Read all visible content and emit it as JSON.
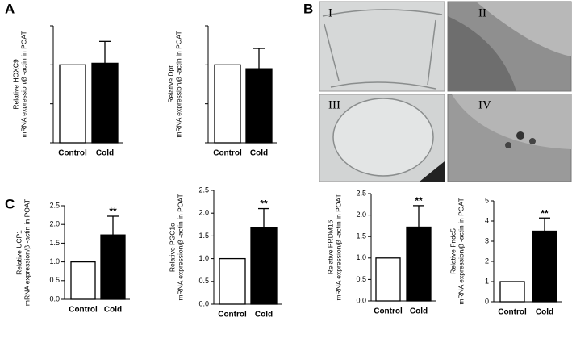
{
  "panel_labels": [
    "A",
    "B",
    "C"
  ],
  "micrographs": [
    "I",
    "II",
    "III",
    "IV"
  ],
  "chart_data": [
    {
      "type": "bar",
      "ylabel": [
        "Relative HOXC9",
        "mRNA expression/β -actin in POAT"
      ],
      "categories": [
        "Control",
        "Cold"
      ],
      "values": [
        1.0,
        1.02
      ],
      "errors": [
        null,
        0.28
      ],
      "colors": [
        "#ffffff",
        "#000000"
      ],
      "ylim": [
        0,
        1.5
      ],
      "yticks": [
        0,
        0.5,
        1,
        1.5
      ],
      "tick_labels": false,
      "annotations": [
        null,
        null
      ]
    },
    {
      "type": "bar",
      "ylabel": [
        "Relative Dpt",
        "mRNA expression/β -actin in POAT"
      ],
      "categories": [
        "Control",
        "Cold"
      ],
      "values": [
        1.0,
        0.95
      ],
      "errors": [
        null,
        0.26
      ],
      "colors": [
        "#ffffff",
        "#000000"
      ],
      "ylim": [
        0,
        1.5
      ],
      "yticks": [
        0,
        0.5,
        1,
        1.5
      ],
      "tick_labels": false,
      "annotations": [
        null,
        null
      ]
    },
    {
      "type": "bar",
      "ylabel": [
        "Relative UCP1",
        "mRNA expression/β -actin in POAT"
      ],
      "categories": [
        "Control",
        "Cold"
      ],
      "values": [
        1.0,
        1.72
      ],
      "errors": [
        null,
        0.5
      ],
      "colors": [
        "#ffffff",
        "#000000"
      ],
      "ylim": [
        0,
        2.5
      ],
      "yticks": [
        {
          "value": 0,
          "label": "0.0"
        },
        0.5,
        {
          "value": 1,
          "label": "1.0"
        },
        1.5,
        {
          "value": 2,
          "label": "2.0"
        },
        2.5
      ],
      "tick_labels": true,
      "annotations": [
        null,
        "**"
      ]
    },
    {
      "type": "bar",
      "ylabel": [
        "Relative PGC1α",
        "mRNA expression/β -actin in POAT"
      ],
      "categories": [
        "Control",
        "Cold"
      ],
      "values": [
        1.0,
        1.68
      ],
      "errors": [
        null,
        0.42
      ],
      "colors": [
        "#ffffff",
        "#000000"
      ],
      "ylim": [
        0,
        2.5
      ],
      "yticks": [
        {
          "value": 0,
          "label": "0.0"
        },
        0.5,
        {
          "value": 1,
          "label": "1.0"
        },
        1.5,
        {
          "value": 2,
          "label": "2.0"
        },
        2.5
      ],
      "tick_labels": true,
      "annotations": [
        null,
        "**"
      ]
    },
    {
      "type": "bar",
      "ylabel": [
        "Relative PRDM16",
        "mRNA expression/β -actin in POAT"
      ],
      "categories": [
        "Control",
        "Cold"
      ],
      "values": [
        1.0,
        1.72
      ],
      "errors": [
        null,
        0.5
      ],
      "colors": [
        "#ffffff",
        "#000000"
      ],
      "ylim": [
        0,
        2.5
      ],
      "yticks": [
        {
          "value": 0,
          "label": "0.0"
        },
        0.5,
        {
          "value": 1,
          "label": "1.0"
        },
        1.5,
        {
          "value": 2,
          "label": "2.0"
        },
        2.5
      ],
      "tick_labels": true,
      "annotations": [
        null,
        "**"
      ]
    },
    {
      "type": "bar",
      "ylabel": [
        "Relative Fndc5",
        "mRNA expression/β -actin in POAT"
      ],
      "categories": [
        "Control",
        "Cold"
      ],
      "values": [
        1,
        3.5
      ],
      "errors": [
        null,
        0.65
      ],
      "colors": [
        "#ffffff",
        "#000000"
      ],
      "ylim": [
        0,
        5
      ],
      "yticks": [
        0,
        1,
        2,
        3,
        4,
        5
      ],
      "tick_labels": true,
      "annotations": [
        null,
        "**"
      ]
    }
  ]
}
